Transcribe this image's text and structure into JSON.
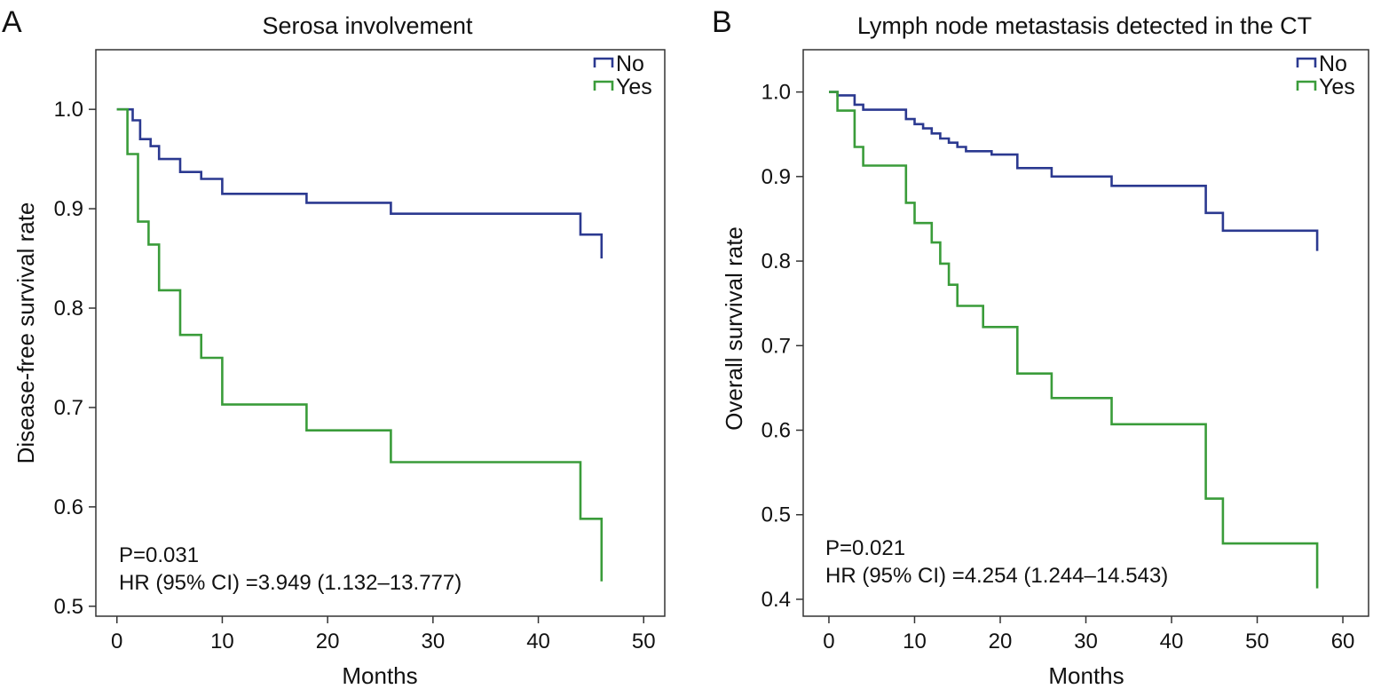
{
  "chart_data": [
    {
      "type": "line",
      "panel": "A",
      "title": "Serosa involvement",
      "xlabel": "Months",
      "ylabel": "Disease-free survival rate",
      "xlim": [
        -2,
        52
      ],
      "ylim": [
        0.49,
        1.06
      ],
      "xticks": [
        0,
        10,
        20,
        30,
        40,
        50
      ],
      "yticks": [
        0.5,
        0.6,
        0.7,
        0.8,
        0.9,
        1.0
      ],
      "ytick_labels": [
        "0.5",
        "0.6",
        "0.7",
        "0.8",
        "0.9",
        "1.0"
      ],
      "grid": false,
      "legend_position": "top-right",
      "series": [
        {
          "name": "No",
          "color": "#2b3990",
          "x": [
            0,
            1.5,
            2.2,
            3.2,
            4.0,
            6.0,
            8.0,
            10.0,
            18.0,
            26.0,
            44.0,
            46.0
          ],
          "y": [
            1.0,
            0.989,
            0.97,
            0.963,
            0.95,
            0.937,
            0.93,
            0.915,
            0.906,
            0.895,
            0.874,
            0.85
          ]
        },
        {
          "name": "Yes",
          "color": "#3a9c3a",
          "x": [
            0,
            1.0,
            2.0,
            3.0,
            4.0,
            6.0,
            8.0,
            10.0,
            18.0,
            26.0,
            44.0,
            46.0
          ],
          "y": [
            1.0,
            0.955,
            0.887,
            0.864,
            0.818,
            0.773,
            0.75,
            0.703,
            0.677,
            0.645,
            0.588,
            0.525
          ]
        }
      ],
      "annotations": [
        "P=0.031",
        "HR (95% CI) =3.949 (1.132–13.777)"
      ]
    },
    {
      "type": "line",
      "panel": "B",
      "title": "Lymph node metastasis detected in the CT",
      "xlabel": "Months",
      "ylabel": "Overall survival rate",
      "xlim": [
        -3,
        63
      ],
      "ylim": [
        0.38,
        1.05
      ],
      "xticks": [
        0,
        10,
        20,
        30,
        40,
        50,
        60
      ],
      "yticks": [
        0.4,
        0.5,
        0.6,
        0.7,
        0.8,
        0.9,
        1.0
      ],
      "ytick_labels": [
        "0.4",
        "0.5",
        "0.6",
        "0.7",
        "0.8",
        "0.9",
        "1.0"
      ],
      "grid": false,
      "legend_position": "top-right",
      "series": [
        {
          "name": "No",
          "color": "#2b3990",
          "x": [
            0,
            1.0,
            3.0,
            4.0,
            9.0,
            10.0,
            11.0,
            12.0,
            13.0,
            14.0,
            15.0,
            16.0,
            19.0,
            22.0,
            26.0,
            33.0,
            44.0,
            46.0,
            57.0
          ],
          "y": [
            1.0,
            0.996,
            0.985,
            0.979,
            0.968,
            0.962,
            0.957,
            0.951,
            0.945,
            0.94,
            0.935,
            0.93,
            0.926,
            0.91,
            0.9,
            0.889,
            0.857,
            0.836,
            0.812
          ]
        },
        {
          "name": "Yes",
          "color": "#3a9c3a",
          "x": [
            0,
            1.0,
            3.0,
            4.0,
            9.0,
            10.0,
            12.0,
            13.0,
            14.0,
            15.0,
            18.0,
            22.0,
            26.0,
            33.0,
            44.0,
            46.0,
            57.0
          ],
          "y": [
            1.0,
            0.978,
            0.935,
            0.913,
            0.869,
            0.845,
            0.822,
            0.797,
            0.772,
            0.747,
            0.722,
            0.667,
            0.638,
            0.607,
            0.519,
            0.466,
            0.413
          ]
        }
      ],
      "annotations": [
        "P=0.021",
        "HR (95% CI) =4.254 (1.244–14.543)"
      ]
    }
  ]
}
